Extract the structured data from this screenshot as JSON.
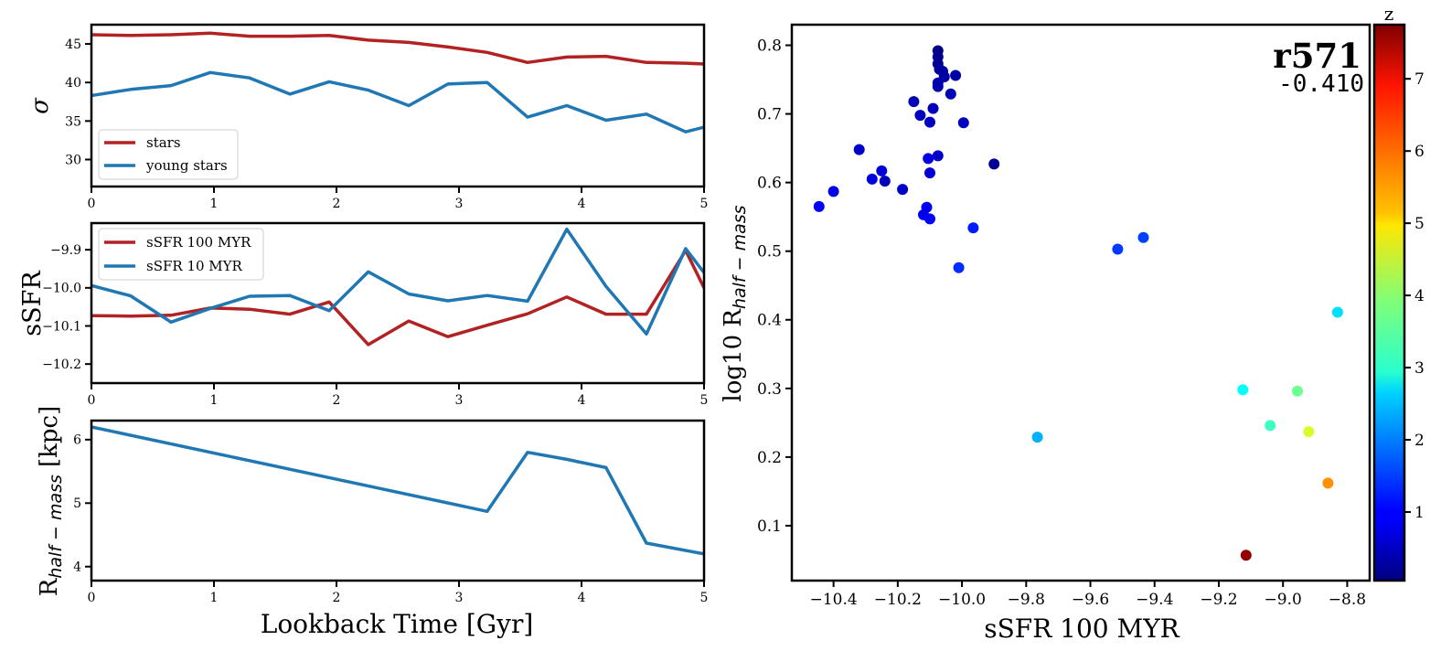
{
  "chart_data": [
    {
      "type": "line",
      "ylabel": "σ",
      "xlim": [
        0,
        5
      ],
      "ylim": [
        26.5,
        47.5
      ],
      "xticks": [
        0,
        1,
        2,
        3,
        4,
        5
      ],
      "yticks": [
        30,
        35,
        40,
        45
      ],
      "legend": "lower-left",
      "series": [
        {
          "name": "stars",
          "color": "#b22222",
          "x": [
            0,
            0.32,
            0.65,
            0.97,
            1.29,
            1.62,
            1.94,
            2.26,
            2.59,
            2.91,
            3.23,
            3.56,
            3.88,
            4.2,
            4.53,
            4.85,
            5.0
          ],
          "y": [
            46.2,
            46.1,
            46.2,
            46.4,
            46.0,
            46.0,
            46.1,
            45.5,
            45.2,
            44.6,
            43.9,
            42.6,
            43.3,
            43.4,
            42.6,
            42.5,
            42.4
          ]
        },
        {
          "name": "young stars",
          "color": "#1f77b4",
          "x": [
            0,
            0.32,
            0.65,
            0.97,
            1.29,
            1.62,
            1.94,
            2.26,
            2.59,
            2.91,
            3.23,
            3.56,
            3.88,
            4.2,
            4.53,
            4.85,
            5.0
          ],
          "y": [
            38.3,
            39.1,
            39.6,
            41.3,
            40.6,
            38.5,
            40.1,
            39.0,
            37.0,
            39.8,
            40.0,
            35.5,
            37.0,
            35.1,
            35.9,
            33.6,
            34.2
          ]
        }
      ]
    },
    {
      "type": "line",
      "ylabel": "sSFR",
      "xlim": [
        0,
        5
      ],
      "ylim": [
        -10.25,
        -9.83
      ],
      "xticks": [
        0,
        1,
        2,
        3,
        4,
        5
      ],
      "yticks": [
        -9.9,
        -10.0,
        -10.1,
        -10.2
      ],
      "ytick_labels": [
        "−9.9",
        "−10.0",
        "−10.1",
        "−10.2"
      ],
      "legend": "upper-left",
      "series": [
        {
          "name": "sSFR 100 MYR",
          "color": "#b22222",
          "x": [
            0,
            0.32,
            0.65,
            0.97,
            1.29,
            1.62,
            1.94,
            2.26,
            2.59,
            2.91,
            3.23,
            3.56,
            3.88,
            4.2,
            4.53,
            4.85,
            5.0
          ],
          "y": [
            -10.073,
            -10.074,
            -10.072,
            -10.053,
            -10.056,
            -10.069,
            -10.037,
            -10.149,
            -10.087,
            -10.128,
            -10.098,
            -10.068,
            -10.024,
            -10.069,
            -10.069,
            -9.902,
            -10.0
          ]
        },
        {
          "name": "sSFR 10 MYR",
          "color": "#1f77b4",
          "x": [
            0,
            0.32,
            0.65,
            0.97,
            1.29,
            1.62,
            1.94,
            2.26,
            2.59,
            2.91,
            3.23,
            3.56,
            3.88,
            4.2,
            4.53,
            4.85,
            5.0
          ],
          "y": [
            -9.994,
            -10.021,
            -10.09,
            -10.054,
            -10.022,
            -10.02,
            -10.06,
            -9.958,
            -10.016,
            -10.034,
            -10.02,
            -10.035,
            -9.846,
            -9.996,
            -10.121,
            -9.897,
            -9.96
          ]
        }
      ]
    },
    {
      "type": "line",
      "ylabel_main": "R",
      "ylabel_sub": "half − mass",
      "ylabel_unit": "[kpc]",
      "xlabel": "Lookback Time [Gyr]",
      "xlim": [
        0,
        5
      ],
      "ylim": [
        3.78,
        6.3
      ],
      "xticks": [
        0,
        1,
        2,
        3,
        4,
        5
      ],
      "yticks": [
        4,
        5,
        6
      ],
      "series": [
        {
          "color": "#1f77b4",
          "x": [
            0,
            3.23,
            3.56,
            3.88,
            4.2,
            4.53,
            5.0
          ],
          "y": [
            6.2,
            4.87,
            5.8,
            5.69,
            5.56,
            4.37,
            4.2
          ]
        }
      ]
    },
    {
      "type": "scatter",
      "xlabel": "sSFR 100 MYR",
      "ylabel_main": "log10 R",
      "ylabel_sub": "half − mass",
      "annotation_title": "r571",
      "annotation_value": "-0.410",
      "xlim": [
        -10.53,
        -8.73
      ],
      "ylim": [
        0.02,
        0.83
      ],
      "xticks": [
        -10.4,
        -10.2,
        -10.0,
        -9.8,
        -9.6,
        -9.4,
        -9.2,
        -9.0,
        -8.8
      ],
      "xtick_labels": [
        "−10.4",
        "−10.2",
        "−10.0",
        "−9.8",
        "−9.6",
        "−9.4",
        "−9.2",
        "−9.0",
        "−8.8"
      ],
      "yticks": [
        0.1,
        0.2,
        0.3,
        0.4,
        0.5,
        0.6,
        0.7,
        0.8
      ],
      "ytick_labels": [
        "0.1",
        "0.2",
        "0.3",
        "0.4",
        "0.5",
        "0.6",
        "0.7",
        "0.8"
      ],
      "colorbar": {
        "label": "z",
        "range": [
          0.05,
          7.75
        ],
        "ticks": [
          1,
          2,
          3,
          4,
          5,
          6,
          7
        ],
        "tick_labels": [
          "1",
          "2",
          "3",
          "4",
          "5",
          "6",
          "7"
        ],
        "colormap": "jet"
      },
      "points": [
        {
          "x": -10.075,
          "y": 0.792,
          "z": 0.1
        },
        {
          "x": -10.075,
          "y": 0.783,
          "z": 0.15
        },
        {
          "x": -10.075,
          "y": 0.773,
          "z": 0.2
        },
        {
          "x": -10.07,
          "y": 0.765,
          "z": 0.25
        },
        {
          "x": -10.06,
          "y": 0.762,
          "z": 0.3
        },
        {
          "x": -10.055,
          "y": 0.754,
          "z": 0.35
        },
        {
          "x": -10.02,
          "y": 0.756,
          "z": 0.35
        },
        {
          "x": -10.075,
          "y": 0.745,
          "z": 0.4
        },
        {
          "x": -10.075,
          "y": 0.74,
          "z": 0.4
        },
        {
          "x": -10.035,
          "y": 0.729,
          "z": 0.45
        },
        {
          "x": -10.15,
          "y": 0.718,
          "z": 0.45
        },
        {
          "x": -10.09,
          "y": 0.708,
          "z": 0.5
        },
        {
          "x": -10.13,
          "y": 0.698,
          "z": 0.5
        },
        {
          "x": -10.1,
          "y": 0.688,
          "z": 0.55
        },
        {
          "x": -9.995,
          "y": 0.687,
          "z": 0.55
        },
        {
          "x": -10.32,
          "y": 0.648,
          "z": 0.6
        },
        {
          "x": -10.075,
          "y": 0.639,
          "z": 0.6
        },
        {
          "x": -10.105,
          "y": 0.635,
          "z": 0.8
        },
        {
          "x": -9.9,
          "y": 0.627,
          "z": 0.2
        },
        {
          "x": -10.25,
          "y": 0.617,
          "z": 0.7
        },
        {
          "x": -10.1,
          "y": 0.614,
          "z": 0.7
        },
        {
          "x": -10.28,
          "y": 0.605,
          "z": 0.75
        },
        {
          "x": -10.24,
          "y": 0.602,
          "z": 0.5
        },
        {
          "x": -10.185,
          "y": 0.59,
          "z": 0.6
        },
        {
          "x": -10.4,
          "y": 0.587,
          "z": 0.85
        },
        {
          "x": -10.445,
          "y": 0.565,
          "z": 0.95
        },
        {
          "x": -10.11,
          "y": 0.564,
          "z": 0.9
        },
        {
          "x": -10.12,
          "y": 0.553,
          "z": 0.9
        },
        {
          "x": -10.1,
          "y": 0.547,
          "z": 1.0
        },
        {
          "x": -9.965,
          "y": 0.534,
          "z": 1.2
        },
        {
          "x": -9.435,
          "y": 0.52,
          "z": 1.5
        },
        {
          "x": -9.515,
          "y": 0.503,
          "z": 1.45
        },
        {
          "x": -10.01,
          "y": 0.476,
          "z": 1.35
        },
        {
          "x": -8.83,
          "y": 0.411,
          "z": 2.7
        },
        {
          "x": -9.125,
          "y": 0.298,
          "z": 2.95
        },
        {
          "x": -8.955,
          "y": 0.296,
          "z": 3.75
        },
        {
          "x": -9.04,
          "y": 0.246,
          "z": 3.4
        },
        {
          "x": -8.92,
          "y": 0.237,
          "z": 4.55
        },
        {
          "x": -9.765,
          "y": 0.229,
          "z": 2.35
        },
        {
          "x": -8.86,
          "y": 0.162,
          "z": 5.7
        },
        {
          "x": -9.115,
          "y": 0.057,
          "z": 7.6
        }
      ]
    }
  ]
}
